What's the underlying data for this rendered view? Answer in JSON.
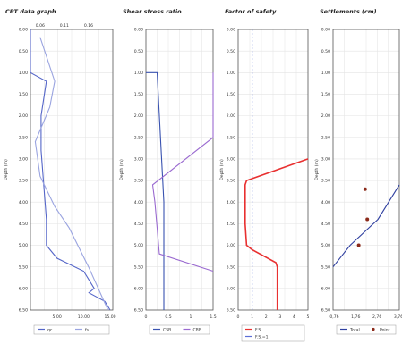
{
  "chart_data": [
    {
      "type": "line",
      "title": "CPT data graph",
      "ylabel": "Depth (m)",
      "ylim": [
        0,
        6.5
      ],
      "yticks": [
        "0.00",
        "0.50",
        "1.00",
        "1.50",
        "2.00",
        "2.50",
        "3.00",
        "3.50",
        "4.00",
        "4.50",
        "5.00",
        "5.50",
        "6.00",
        "6.50"
      ],
      "top_axis": {
        "ticks": [
          "0.06",
          "0.11",
          "0.16"
        ],
        "values": [
          0.06,
          0.11,
          0.16
        ],
        "range": [
          0.04,
          0.21
        ]
      },
      "bottom_axis": {
        "ticks": [
          "5.00",
          "10.00",
          "15.00"
        ],
        "values": [
          5,
          10,
          15
        ],
        "range": [
          0,
          15.5
        ]
      },
      "series": [
        {
          "name": "qc",
          "axis": "bottom",
          "color": "#5566c8",
          "points": [
            [
              0,
              0
            ],
            [
              0,
              0.5
            ],
            [
              0,
              1
            ],
            [
              3,
              1.2
            ],
            [
              2,
              2
            ],
            [
              2,
              2.8
            ],
            [
              3,
              4.4
            ],
            [
              3,
              5
            ],
            [
              5,
              5.3
            ],
            [
              10,
              5.6
            ],
            [
              12,
              6
            ],
            [
              11,
              6.1
            ],
            [
              14,
              6.3
            ],
            [
              15,
              6.5
            ]
          ]
        },
        {
          "name": "fs",
          "axis": "top",
          "color": "#9aa4e0",
          "points": [
            [
              0.06,
              0.18
            ],
            [
              0.09,
              1.2
            ],
            [
              0.08,
              1.8
            ],
            [
              0.05,
              2.6
            ],
            [
              0.06,
              3.4
            ],
            [
              0.09,
              4.1
            ],
            [
              0.12,
              4.6
            ],
            [
              0.16,
              5.5
            ],
            [
              0.2,
              6.5
            ]
          ]
        }
      ],
      "legend": {
        "position": "bottom",
        "items": [
          "qc",
          "fs"
        ]
      }
    },
    {
      "type": "line",
      "title": "Shear stress ratio",
      "ylabel": "Depth (m)",
      "ylim": [
        0,
        6.5
      ],
      "yticks": [
        "0.00",
        "0.50",
        "1.00",
        "1.50",
        "2.00",
        "2.50",
        "3.00",
        "3.50",
        "4.00",
        "4.50",
        "5.00",
        "5.50",
        "6.00",
        "6.50"
      ],
      "xlim": [
        0,
        1.5
      ],
      "xticks": [
        "0",
        "0.5",
        "1",
        "1.5"
      ],
      "xtick_values": [
        0,
        0.5,
        1,
        1.5
      ],
      "series": [
        {
          "name": "CSR",
          "color": "#3a53b0",
          "points": [
            [
              0,
              1
            ],
            [
              0.25,
              1
            ],
            [
              0.3,
              2
            ],
            [
              0.35,
              3
            ],
            [
              0.4,
              4
            ],
            [
              0.4,
              6.5
            ]
          ]
        },
        {
          "name": "CRR",
          "color": "#9a6ad0",
          "points": [
            [
              1.5,
              1
            ],
            [
              1.5,
              2.5
            ],
            [
              0.15,
              3.6
            ],
            [
              0.2,
              4
            ],
            [
              0.3,
              5.2
            ],
            [
              1.5,
              5.6
            ]
          ]
        }
      ],
      "legend": {
        "position": "bottom",
        "items": [
          "CSR",
          "CRR"
        ]
      }
    },
    {
      "type": "line",
      "title": "Factor of safety",
      "ylabel": "Depth (m)",
      "ylim": [
        0,
        6.5
      ],
      "yticks": [
        "0.00",
        "0.50",
        "1.00",
        "1.50",
        "2.00",
        "2.50",
        "3.00",
        "3.50",
        "4.00",
        "4.50",
        "5.00",
        "5.50",
        "6.00",
        "6.50"
      ],
      "xlim": [
        0,
        5
      ],
      "xticks": [
        "0",
        "1",
        "2",
        "3",
        "4",
        "5"
      ],
      "xtick_values": [
        0,
        1,
        2,
        3,
        4,
        5
      ],
      "series": [
        {
          "name": "F.S.",
          "color": "#e83030",
          "points": [
            [
              5,
              3
            ],
            [
              0.6,
              3.5
            ],
            [
              0.5,
              3.6
            ],
            [
              0.5,
              4.5
            ],
            [
              0.6,
              5
            ],
            [
              1,
              5.1
            ],
            [
              2.7,
              5.4
            ],
            [
              2.8,
              5.5
            ],
            [
              2.8,
              6.5
            ]
          ]
        },
        {
          "name": "F.S.=1",
          "color": "#5c6ed6",
          "points": [
            [
              1,
              0
            ],
            [
              1,
              6.5
            ]
          ]
        }
      ],
      "legend": {
        "position": "bottom",
        "items": [
          "F.S.",
          "F.S.=1"
        ]
      }
    },
    {
      "type": "line",
      "title": "Settlements (cm)",
      "ylabel": "Depth (m)",
      "ylim": [
        0,
        6.5
      ],
      "yticks": [
        "0.00",
        "0.50",
        "1.00",
        "1.50",
        "2.00",
        "2.50",
        "3.00",
        "3.50",
        "4.00",
        "4.50",
        "5.00",
        "5.50",
        "6.00",
        "6.50"
      ],
      "xlim": [
        0.7,
        3.8
      ],
      "xticks": [
        "0,76",
        "1,76",
        "2,76",
        "3,76"
      ],
      "xtick_values": [
        0.76,
        1.76,
        2.76,
        3.76
      ],
      "series": [
        {
          "name": "Total",
          "color": "#3040a0",
          "points": [
            [
              0.7,
              5.5
            ],
            [
              1.5,
              5
            ],
            [
              2.8,
              4.4
            ],
            [
              3.8,
              3.6
            ]
          ]
        },
        {
          "name": "Point",
          "color": "#8b2a1a",
          "type": "scatter",
          "points": [
            [
              2.2,
              3.7
            ],
            [
              2.3,
              4.4
            ],
            [
              1.9,
              5
            ]
          ]
        }
      ],
      "legend": {
        "position": "bottom",
        "items": [
          "Total",
          "Point"
        ]
      }
    }
  ]
}
